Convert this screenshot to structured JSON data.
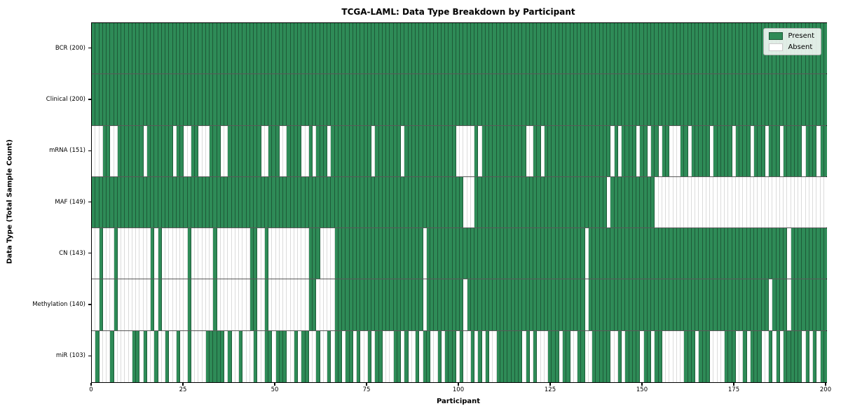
{
  "title": "TCGA-LAML: Data Type Breakdown by Participant",
  "axes": {
    "x_label": "Participant",
    "y_label": "Data Type (Total Sample Count)",
    "x_ticks": [
      0,
      25,
      50,
      75,
      100,
      125,
      150,
      175,
      200
    ]
  },
  "legend": {
    "present_label": "Present",
    "absent_label": "Absent"
  },
  "colors": {
    "present": "#2e8b57",
    "absent": "#ffffff"
  },
  "chart_data": {
    "type": "heatmap",
    "title": "TCGA-LAML: Data Type Breakdown by Participant",
    "xlabel": "Participant",
    "ylabel": "Data Type (Total Sample Count)",
    "x_range": [
      0,
      200
    ],
    "x_ticks": [
      0,
      25,
      50,
      75,
      100,
      125,
      150,
      175,
      200
    ],
    "n_participants": 200,
    "legend_entries": [
      "Present",
      "Absent"
    ],
    "legend_position": "upper right",
    "cell_values": "1 = present (green), 0 = absent (white); rows list absent participant indices",
    "rows": [
      {
        "name": "BCR",
        "label": "BCR (200)",
        "present_count": 200,
        "absent_participants": []
      },
      {
        "name": "Clinical",
        "label": "Clinical (200)",
        "present_count": 200,
        "absent_participants": []
      },
      {
        "name": "mRNA",
        "label": "mRNA (151)",
        "present_count": 151,
        "absent_participants": [
          0,
          1,
          2,
          5,
          6,
          14,
          22,
          25,
          26,
          29,
          30,
          31,
          35,
          36,
          46,
          47,
          51,
          52,
          57,
          58,
          60,
          64,
          76,
          84,
          99,
          100,
          101,
          102,
          103,
          105,
          118,
          119,
          122,
          141,
          143,
          148,
          151,
          154,
          157,
          158,
          159,
          162,
          168,
          174,
          179,
          183,
          187,
          193,
          197
        ]
      },
      {
        "name": "MAF",
        "label": "MAF (149)",
        "present_count": 149,
        "absent_participants": [
          101,
          102,
          103,
          140,
          153,
          154,
          155,
          156,
          157,
          158,
          159,
          160,
          161,
          162,
          163,
          164,
          165,
          166,
          167,
          168,
          169,
          170,
          171,
          172,
          173,
          174,
          175,
          176,
          177,
          178,
          179,
          180,
          181,
          182,
          183,
          184,
          185,
          186,
          187,
          188,
          189,
          190,
          191,
          192,
          193,
          194,
          195,
          196,
          197,
          198,
          199
        ]
      },
      {
        "name": "CN",
        "label": "CN (143)",
        "present_count": 143,
        "absent_participants": [
          0,
          1,
          3,
          4,
          5,
          7,
          8,
          9,
          10,
          11,
          12,
          13,
          14,
          15,
          17,
          19,
          20,
          21,
          22,
          23,
          24,
          25,
          27,
          28,
          29,
          30,
          31,
          32,
          34,
          35,
          36,
          37,
          38,
          39,
          40,
          41,
          42,
          45,
          46,
          48,
          49,
          50,
          51,
          52,
          53,
          54,
          55,
          56,
          57,
          58,
          62,
          63,
          64,
          65,
          90,
          134,
          189
        ]
      },
      {
        "name": "Methylation",
        "label": "Methylation (140)",
        "present_count": 140,
        "absent_participants": [
          0,
          1,
          3,
          4,
          5,
          7,
          8,
          9,
          10,
          11,
          12,
          13,
          14,
          15,
          17,
          19,
          20,
          21,
          22,
          23,
          24,
          25,
          27,
          28,
          29,
          30,
          31,
          32,
          34,
          35,
          36,
          37,
          38,
          39,
          40,
          41,
          42,
          45,
          46,
          48,
          49,
          50,
          51,
          52,
          53,
          54,
          55,
          56,
          57,
          58,
          61,
          62,
          63,
          64,
          65,
          90,
          101,
          134,
          184,
          189
        ]
      },
      {
        "name": "miR",
        "label": "miR (103)",
        "present_count": 103,
        "absent_participants": [
          0,
          2,
          3,
          4,
          6,
          7,
          8,
          9,
          10,
          13,
          15,
          16,
          18,
          19,
          21,
          22,
          24,
          25,
          27,
          28,
          29,
          30,
          36,
          38,
          39,
          41,
          42,
          43,
          45,
          46,
          49,
          53,
          54,
          56,
          59,
          60,
          62,
          63,
          65,
          68,
          71,
          73,
          74,
          76,
          79,
          80,
          81,
          84,
          86,
          87,
          89,
          92,
          93,
          95,
          99,
          101,
          102,
          104,
          106,
          108,
          109,
          117,
          119,
          121,
          122,
          123,
          127,
          130,
          131,
          134,
          135,
          141,
          142,
          144,
          149,
          152,
          155,
          156,
          157,
          158,
          159,
          160,
          164,
          168,
          169,
          170,
          171,
          175,
          176,
          178,
          182,
          183,
          185,
          187,
          193,
          195,
          197
        ]
      }
    ]
  }
}
